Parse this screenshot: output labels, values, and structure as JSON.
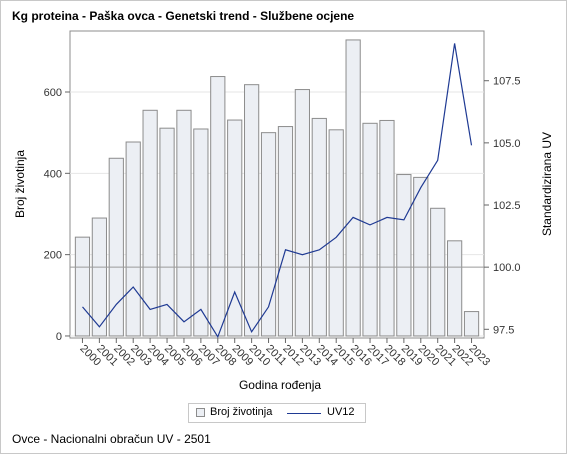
{
  "chart_data": {
    "type": "bar",
    "title": "Kg proteina - Paška ovca - Genetski trend - Službene ocjene",
    "xlabel": "Godina rođenja",
    "ylabel": "Broj životinja",
    "y2label": "Standardizirana UV",
    "categories": [
      "2000",
      "2001",
      "2002",
      "2003",
      "2004",
      "2005",
      "2006",
      "2007",
      "2008",
      "2009",
      "2010",
      "2011",
      "2012",
      "2013",
      "2014",
      "2015",
      "2016",
      "2017",
      "2018",
      "2019",
      "2020",
      "2021",
      "2022",
      "2023"
    ],
    "series": [
      {
        "name": "Broj životinja",
        "type": "bar",
        "axis": "left",
        "values": [
          243,
          290,
          437,
          477,
          555,
          511,
          555,
          509,
          638,
          531,
          618,
          500,
          515,
          606,
          535,
          507,
          728,
          523,
          530,
          397,
          390,
          314,
          234,
          60
        ]
      },
      {
        "name": "UV12",
        "type": "line",
        "axis": "right",
        "values": [
          98.4,
          97.6,
          98.5,
          99.2,
          98.3,
          98.5,
          97.8,
          98.3,
          97.2,
          99.0,
          97.4,
          98.4,
          100.7,
          100.5,
          100.7,
          101.2,
          102.0,
          101.7,
          102.0,
          101.9,
          103.2,
          104.3,
          109.0,
          104.9
        ]
      }
    ],
    "y_ticks": [
      0,
      200,
      400,
      600
    ],
    "y2_ticks": [
      "97.5",
      "100.0",
      "102.5",
      "105.0",
      "107.5"
    ],
    "ylim": [
      -5,
      750
    ],
    "y2lim": [
      97.15,
      109.5
    ],
    "reference_line_y2": 100.0,
    "legend_position": "bottom",
    "colors": {
      "bar_fill": "#eceff4",
      "bar_stroke": "#8c8c8c",
      "line": "#1f3a93",
      "grid": "#e6e6e6",
      "reference": "#9a9a9a"
    }
  },
  "footer": "Ovce - Nacionalni obračun UV - 2501",
  "legend": {
    "bar_label": "Broj životinja",
    "line_label": "UV12"
  }
}
